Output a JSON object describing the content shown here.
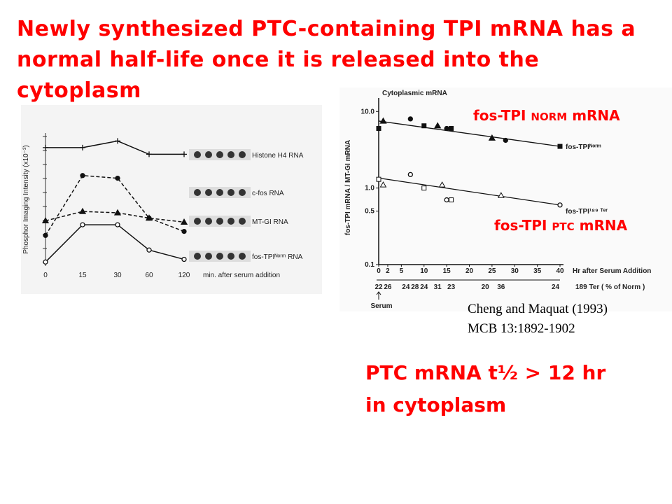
{
  "title": "Newly synthesized PTC-containing TPI mRNA has a normal half-life once it is released into the cytoplasm",
  "left_figure": {
    "type": "line",
    "y_axis_label": "Phosphor Imaging Intensity (x10⁻³)",
    "x_axis_label": "min. after serum addition",
    "categories": [
      "0",
      "15",
      "30",
      "60",
      "120"
    ],
    "ylim": [
      0,
      100
    ],
    "series": [
      {
        "name": "Histone H4 RNA",
        "style": "solid",
        "marker": "plus",
        "values": [
          89,
          89,
          94,
          84,
          84
        ]
      },
      {
        "name": "c-fos RNA",
        "style": "dashed",
        "marker": "dot",
        "values": [
          23,
          68,
          66,
          36,
          26
        ]
      },
      {
        "name": "MT-GI RNA",
        "style": "dashed",
        "marker": "triangle",
        "values": [
          34,
          41,
          40,
          36,
          33
        ]
      },
      {
        "name": "fos-TPIᴺᵒʳᵐ RNA",
        "style": "solid",
        "marker": "circle",
        "values": [
          3,
          31,
          31,
          12,
          5
        ]
      }
    ]
  },
  "right_figure": {
    "type": "scatter",
    "title": "Cytoplasmic mRNA",
    "y_axis_label": "fos-TPI mRNA / MT-GI mRNA",
    "x_axis_label": "Hr after Serum Addition",
    "secondary_label": "189 Ter  ( % of Norm )",
    "serum_label": "Serum",
    "log_y": true,
    "xlim": [
      0,
      40
    ],
    "ylim": [
      0.1,
      15
    ],
    "xticks": [
      0,
      2,
      5,
      10,
      15,
      20,
      25,
      30,
      35,
      40
    ],
    "yticks": [
      {
        "value": 10,
        "label": "10.0"
      },
      {
        "value": 1,
        "label": "1.0"
      },
      0.5,
      0.1
    ],
    "ptc_percent": {
      "x": [
        0,
        2,
        6,
        8,
        10,
        13,
        16,
        23.5,
        27,
        39
      ],
      "labels": [
        22,
        26,
        24,
        28,
        24,
        31,
        23,
        20,
        36,
        24
      ]
    },
    "series": [
      {
        "name": "fos-TPIᴺᵒʳᵐ",
        "x": [
          0,
          1,
          7,
          10,
          13,
          15,
          16,
          25,
          28,
          40
        ],
        "values": [
          6,
          7.5,
          8,
          6.5,
          6.5,
          6,
          6,
          4.5,
          4.2,
          3.5
        ],
        "fit": [
          7.5,
          3.5
        ]
      },
      {
        "name": "fos-TPI¹⁸⁹ ᵀᵉʳ",
        "x": [
          0,
          1,
          7,
          10,
          14,
          15,
          16,
          27,
          40
        ],
        "values": [
          1.3,
          1.1,
          1.5,
          1.0,
          1.1,
          0.7,
          0.7,
          0.8,
          0.6
        ],
        "fit": [
          1.35,
          0.6
        ]
      }
    ]
  },
  "annotations": {
    "norm_prefix": "fos-TPI",
    "norm_tag": "NORM",
    "norm_suffix": "mRNA",
    "ptc_prefix": "fos-TPI",
    "ptc_tag": "PTC",
    "ptc_suffix": "mRNA",
    "citation": [
      "Cheng and Maquat (1993)",
      "MCB 13:1892-1902"
    ],
    "conclusion": [
      "PTC mRNA t½ > 12 hr",
      "in cytoplasm"
    ]
  }
}
